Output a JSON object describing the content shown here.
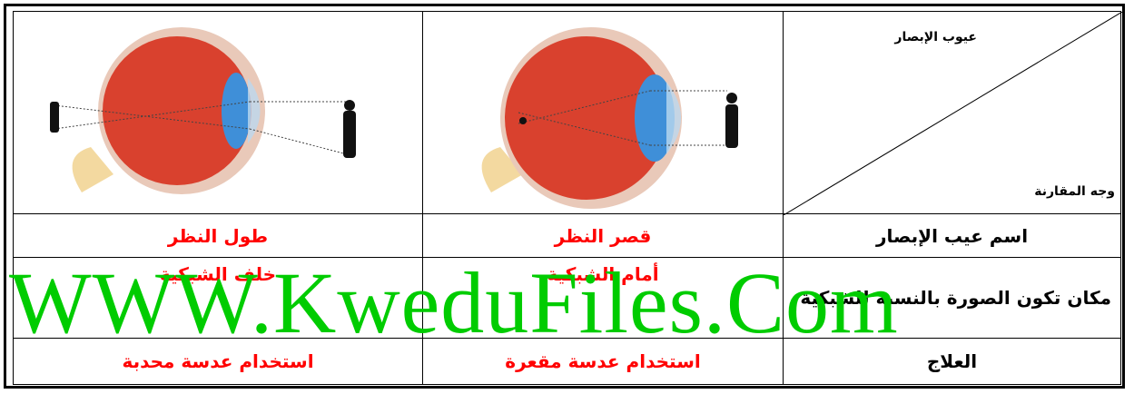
{
  "header": {
    "corner_top": "عيوب الإبصار",
    "corner_bottom": "وجه المقارنة"
  },
  "table": {
    "rows": [
      [
        "اسم عيب الإبصار",
        "قصر النظر",
        "طول النظر"
      ],
      [
        "مكان تكون الصورة بالنسبة للشبكية",
        "أمام الشبكية",
        "خلف الشبكية"
      ],
      [
        "العلاج",
        "استخدام عدسة مقعرة",
        "استخدام عدسة محدبة"
      ]
    ]
  },
  "watermark": "WWW.KweduFiles.Com"
}
